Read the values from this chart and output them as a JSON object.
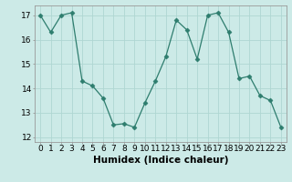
{
  "x": [
    0,
    1,
    2,
    3,
    4,
    5,
    6,
    7,
    8,
    9,
    10,
    11,
    12,
    13,
    14,
    15,
    16,
    17,
    18,
    19,
    20,
    21,
    22,
    23
  ],
  "y": [
    17.0,
    16.3,
    17.0,
    17.1,
    14.3,
    14.1,
    13.6,
    12.5,
    12.55,
    12.4,
    13.4,
    14.3,
    15.3,
    16.8,
    16.4,
    15.2,
    17.0,
    17.1,
    16.3,
    14.4,
    14.5,
    13.7,
    13.5,
    12.4
  ],
  "line_color": "#2e7d6e",
  "marker": "D",
  "marker_size": 2.5,
  "bg_color": "#cceae7",
  "grid_color": "#afd6d2",
  "xlabel": "Humidex (Indice chaleur)",
  "ylim": [
    11.8,
    17.4
  ],
  "xlim": [
    -0.5,
    23.5
  ],
  "yticks": [
    12,
    13,
    14,
    15,
    16,
    17
  ],
  "xticks": [
    0,
    1,
    2,
    3,
    4,
    5,
    6,
    7,
    8,
    9,
    10,
    11,
    12,
    13,
    14,
    15,
    16,
    17,
    18,
    19,
    20,
    21,
    22,
    23
  ],
  "xlabel_fontsize": 7.5,
  "tick_fontsize": 6.5,
  "linewidth": 0.9
}
